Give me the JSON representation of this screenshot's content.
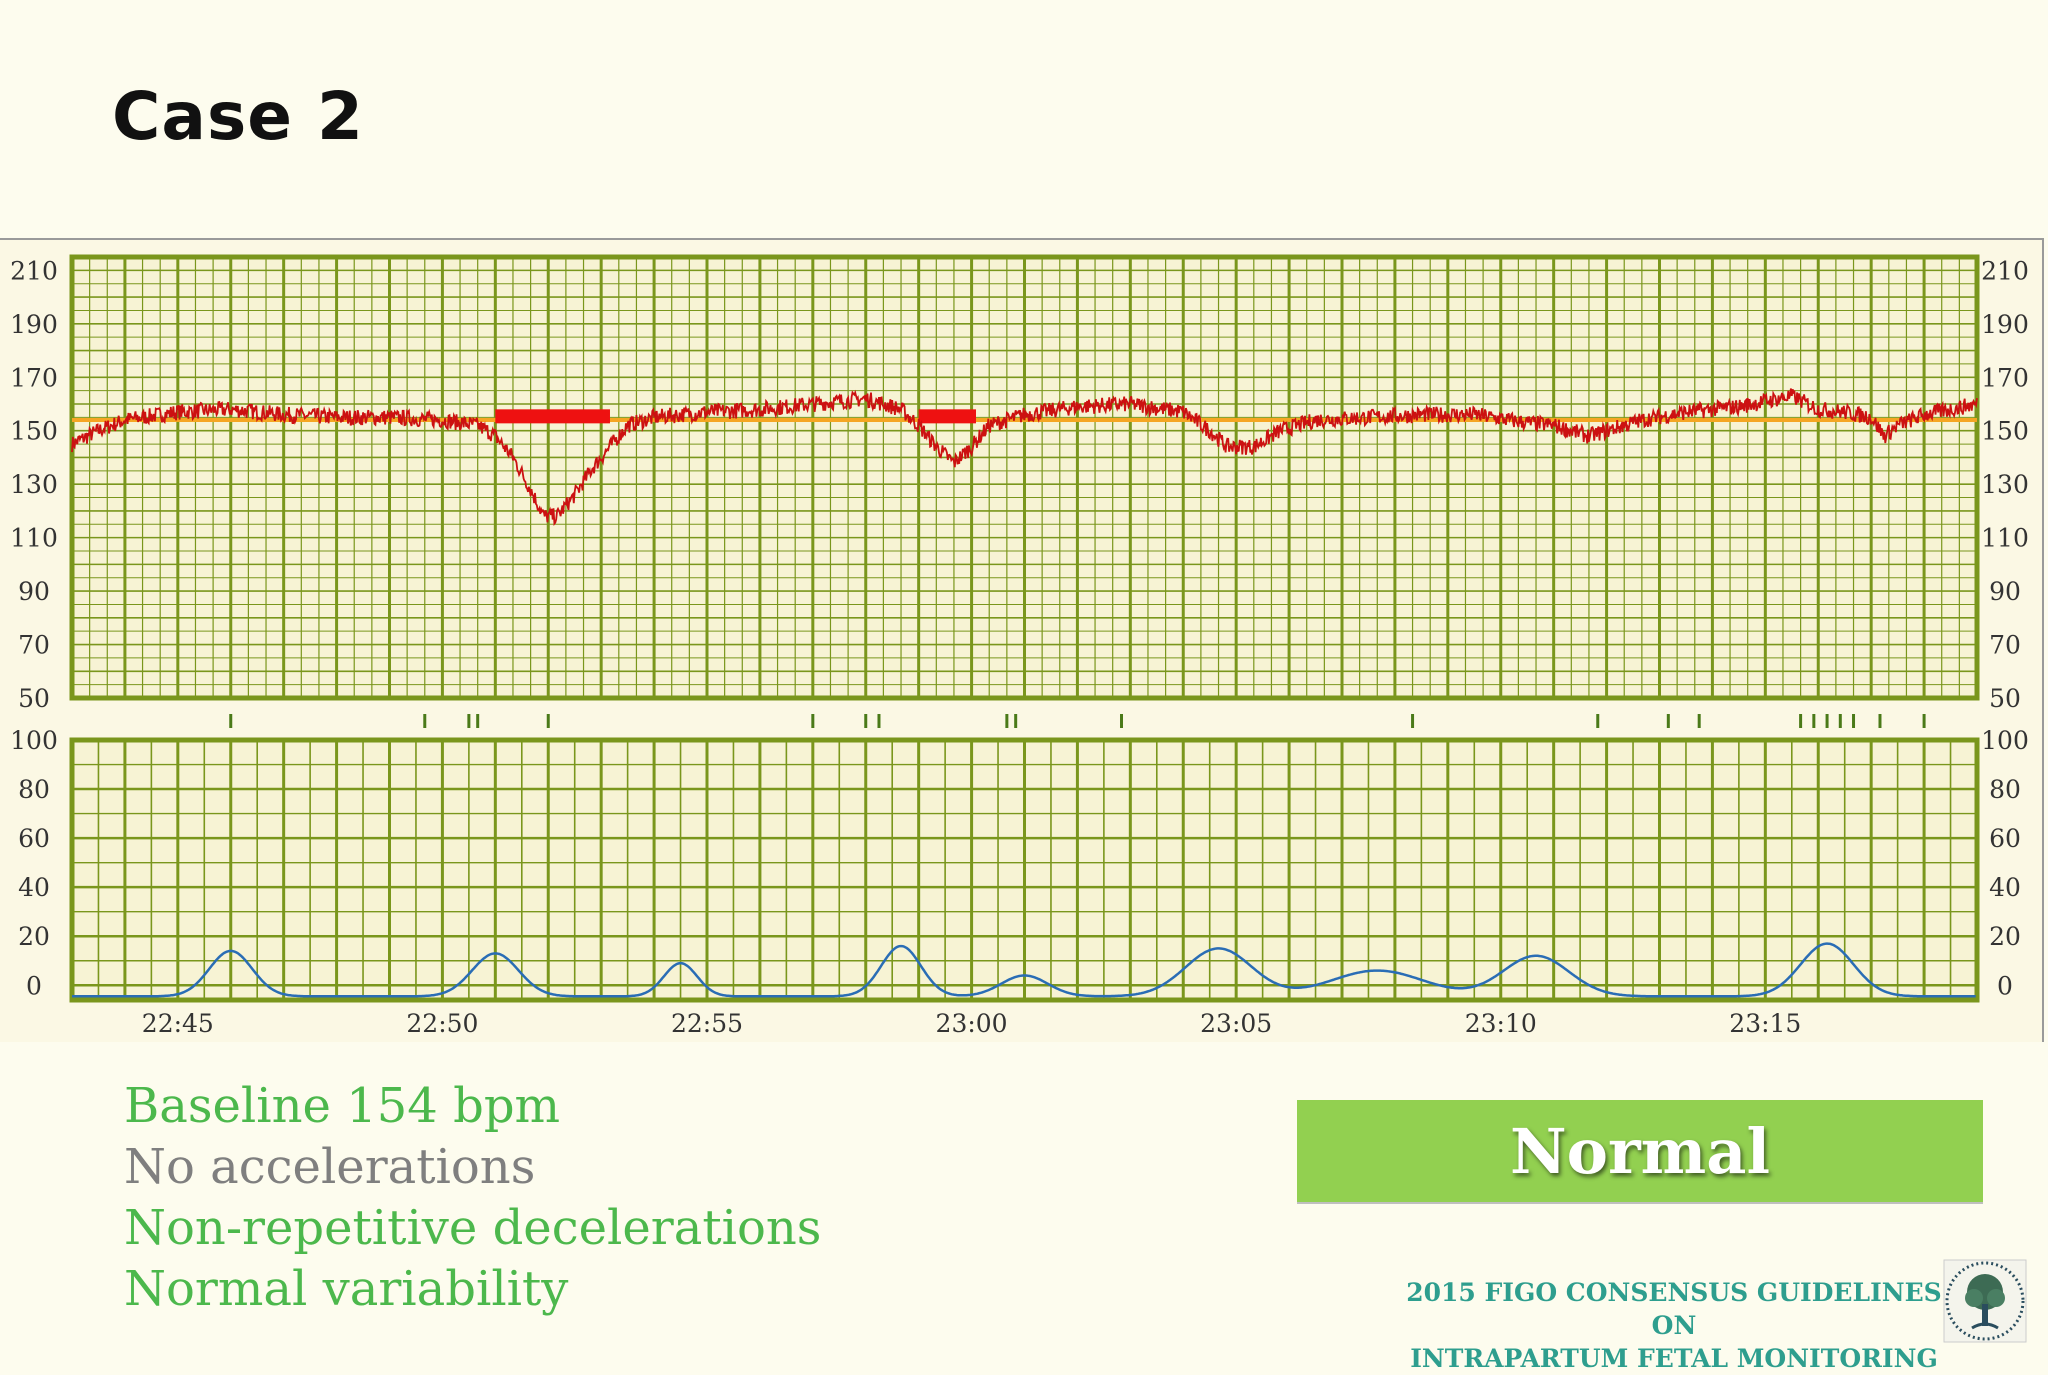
{
  "slide": {
    "title": "Case 2",
    "findings": [
      {
        "text": "Baseline 154 bpm",
        "color": "#4cb84c"
      },
      {
        "text": "No accelerations",
        "color": "#7f7f7f"
      },
      {
        "text": "Non-repetitive decelerations",
        "color": "#4cb84c"
      },
      {
        "text": "Normal variability",
        "color": "#4cb84c"
      }
    ],
    "verdict": "Normal",
    "verdict_color": "#92d050",
    "footer_line1": "2015 FIGO CONSENSUS GUIDELINES ON",
    "footer_line2": "INTRAPARTUM FETAL MONITORING",
    "logo_icon": "figo-tree-logo-icon"
  },
  "chart_data": [
    {
      "type": "line",
      "name": "fetal-heart-rate",
      "y_ticks": [
        210,
        190,
        170,
        150,
        130,
        110,
        90,
        70,
        50
      ],
      "ylim": [
        50,
        215
      ],
      "xlim": [
        "22:43",
        "23:19"
      ],
      "x_tick_labels": [
        "22:45",
        "22:50",
        "22:55",
        "23:00",
        "23:05",
        "23:10",
        "23:15"
      ],
      "baseline": 154,
      "line_color": "#cc1111",
      "baseline_color": "#f5a623",
      "grid": true,
      "fhr_points": [
        [
          "22:43:00",
          145
        ],
        [
          "22:43:30",
          150
        ],
        [
          "22:44:00",
          154
        ],
        [
          "22:45:00",
          157
        ],
        [
          "22:46:00",
          158
        ],
        [
          "22:47:00",
          156
        ],
        [
          "22:48:00",
          155
        ],
        [
          "22:49:00",
          155
        ],
        [
          "22:50:00",
          154
        ],
        [
          "22:50:40",
          152
        ],
        [
          "22:51:00",
          148
        ],
        [
          "22:51:20",
          140
        ],
        [
          "22:51:40",
          128
        ],
        [
          "22:51:55",
          118
        ],
        [
          "22:52:10",
          118
        ],
        [
          "22:52:30",
          126
        ],
        [
          "22:52:50",
          136
        ],
        [
          "22:53:10",
          144
        ],
        [
          "22:53:30",
          152
        ],
        [
          "22:54:00",
          155
        ],
        [
          "22:55:00",
          157
        ],
        [
          "22:56:00",
          158
        ],
        [
          "22:57:00",
          160
        ],
        [
          "22:58:00",
          162
        ],
        [
          "22:58:40",
          158
        ],
        [
          "22:59:00",
          152
        ],
        [
          "22:59:20",
          144
        ],
        [
          "22:59:40",
          138
        ],
        [
          "23:00:00",
          144
        ],
        [
          "23:00:20",
          152
        ],
        [
          "23:01:00",
          156
        ],
        [
          "23:02:00",
          159
        ],
        [
          "23:03:00",
          160
        ],
        [
          "23:04:00",
          157
        ],
        [
          "23:04:30",
          150
        ],
        [
          "23:04:50",
          144
        ],
        [
          "23:05:20",
          144
        ],
        [
          "23:05:50",
          150
        ],
        [
          "23:06:30",
          154
        ],
        [
          "23:07:30",
          155
        ],
        [
          "23:08:30",
          156
        ],
        [
          "23:09:30",
          156
        ],
        [
          "23:10:30",
          153
        ],
        [
          "23:11:00",
          152
        ],
        [
          "23:11:40",
          148
        ],
        [
          "23:12:00",
          150
        ],
        [
          "23:12:40",
          154
        ],
        [
          "23:13:30",
          157
        ],
        [
          "23:14:30",
          159
        ],
        [
          "23:15:30",
          163
        ],
        [
          "23:16:00",
          158
        ],
        [
          "23:16:30",
          157
        ],
        [
          "23:17:00",
          155
        ],
        [
          "23:17:15",
          148
        ],
        [
          "23:17:30",
          152
        ],
        [
          "23:18:00",
          156
        ],
        [
          "23:19:00",
          160
        ]
      ],
      "signal_loss": [
        [
          "22:51:00",
          "22:53:10"
        ],
        [
          "22:59:00",
          "23:00:05"
        ]
      ]
    },
    {
      "type": "line",
      "name": "uterine-activity",
      "y_ticks": [
        100,
        80,
        60,
        40,
        20,
        0
      ],
      "ylim": [
        -6,
        100
      ],
      "xlim": [
        "22:43",
        "23:19"
      ],
      "x_tick_labels": [
        "22:45",
        "22:50",
        "22:55",
        "23:00",
        "23:05",
        "23:10",
        "23:15"
      ],
      "line_color": "#2a6db5",
      "grid": true,
      "contraction_peaks": [
        {
          "time": "22:46:00",
          "value": 14,
          "width_min": 1.3
        },
        {
          "time": "22:51:00",
          "value": 13,
          "width_min": 1.4
        },
        {
          "time": "22:54:30",
          "value": 9,
          "width_min": 1.0
        },
        {
          "time": "22:58:40",
          "value": 16,
          "width_min": 1.2
        },
        {
          "time": "23:01:00",
          "value": 4,
          "width_min": 1.4
        },
        {
          "time": "23:04:40",
          "value": 15,
          "width_min": 2.0
        },
        {
          "time": "23:07:40",
          "value": 6,
          "width_min": 2.8
        },
        {
          "time": "23:10:40",
          "value": 12,
          "width_min": 2.0
        },
        {
          "time": "23:16:10",
          "value": 17,
          "width_min": 1.6
        }
      ],
      "event_marks": [
        "22:46:00",
        "22:49:40",
        "22:50:30",
        "22:50:40",
        "22:52:00",
        "22:57:00",
        "22:58:00",
        "22:58:15",
        "23:00:40",
        "23:00:50",
        "23:02:50",
        "23:08:20",
        "23:11:50",
        "23:13:10",
        "23:13:45",
        "23:15:40",
        "23:15:55",
        "23:16:10",
        "23:16:25",
        "23:16:40",
        "23:17:10",
        "23:18:00"
      ]
    }
  ]
}
